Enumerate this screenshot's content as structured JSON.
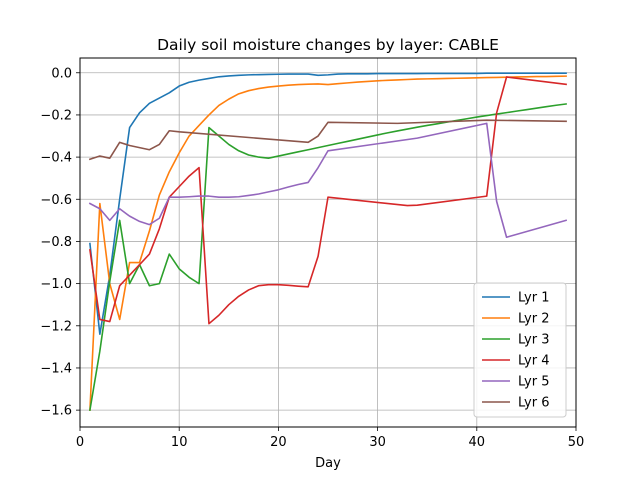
{
  "chart_data": {
    "type": "line",
    "title": "Daily soil moisture changes by layer: CABLE",
    "xlabel": "Day",
    "ylabel": "",
    "xlim": [
      0,
      50
    ],
    "ylim": [
      -1.68,
      0.07
    ],
    "xticks": [
      0,
      10,
      20,
      30,
      40,
      50
    ],
    "yticks": [
      0.0,
      -0.2,
      -0.4,
      -0.6,
      -0.8,
      -1.0,
      -1.2,
      -1.4,
      -1.6
    ],
    "xtick_labels": [
      "0",
      "10",
      "20",
      "30",
      "40",
      "50"
    ],
    "ytick_labels": [
      "0.0",
      "−0.2",
      "−0.4",
      "−0.6",
      "−0.8",
      "−1.0",
      "−1.2",
      "−1.4",
      "−1.6"
    ],
    "grid": true,
    "legend_position": "lower-right",
    "series": [
      {
        "name": "Lyr 1",
        "color": "#1f77b4",
        "x": [
          1,
          2,
          3,
          4,
          5,
          6,
          7,
          8,
          9,
          10,
          11,
          12,
          13,
          14,
          15,
          16,
          17,
          18,
          19,
          20,
          21,
          22,
          23,
          24,
          25,
          26,
          27,
          28,
          29,
          30,
          31,
          32,
          33,
          34,
          35,
          36,
          37,
          38,
          39,
          40,
          41,
          42,
          43,
          44,
          45,
          46,
          47,
          48,
          49
        ],
        "y": [
          -0.81,
          -1.24,
          -0.96,
          -0.6,
          -0.26,
          -0.19,
          -0.145,
          -0.12,
          -0.095,
          -0.063,
          -0.045,
          -0.035,
          -0.027,
          -0.019,
          -0.015,
          -0.012,
          -0.01,
          -0.009,
          -0.008,
          -0.007,
          -0.006,
          -0.006,
          -0.006,
          -0.012,
          -0.01,
          -0.006,
          -0.005,
          -0.005,
          -0.005,
          -0.004,
          -0.004,
          -0.004,
          -0.004,
          -0.004,
          -0.003,
          -0.003,
          -0.003,
          -0.003,
          -0.003,
          -0.003,
          -0.002,
          -0.002,
          -0.002,
          -0.002,
          -0.002,
          -0.002,
          -0.002,
          -0.002,
          -0.002
        ]
      },
      {
        "name": "Lyr 2",
        "color": "#ff7f0e",
        "x": [
          1,
          2,
          3,
          4,
          5,
          6,
          7,
          8,
          9,
          10,
          11,
          12,
          13,
          14,
          15,
          16,
          17,
          18,
          19,
          20,
          21,
          22,
          23,
          24,
          25,
          26,
          27,
          28,
          29,
          30,
          31,
          32,
          33,
          34,
          35,
          36,
          37,
          38,
          39,
          40,
          41,
          42,
          43,
          44,
          45,
          46,
          47,
          48,
          49
        ],
        "y": [
          -1.6,
          -0.62,
          -1.0,
          -1.17,
          -0.9,
          -0.9,
          -0.75,
          -0.58,
          -0.47,
          -0.38,
          -0.3,
          -0.25,
          -0.2,
          -0.155,
          -0.125,
          -0.1,
          -0.085,
          -0.075,
          -0.068,
          -0.063,
          -0.059,
          -0.056,
          -0.054,
          -0.053,
          -0.056,
          -0.052,
          -0.048,
          -0.044,
          -0.041,
          -0.038,
          -0.036,
          -0.034,
          -0.032,
          -0.03,
          -0.029,
          -0.028,
          -0.027,
          -0.026,
          -0.025,
          -0.024,
          -0.023,
          -0.022,
          -0.021,
          -0.02,
          -0.019,
          -0.018,
          -0.018,
          -0.017,
          -0.016
        ]
      },
      {
        "name": "Lyr 3",
        "color": "#2ca02c",
        "x": [
          1,
          2,
          3,
          4,
          5,
          6,
          7,
          8,
          9,
          10,
          11,
          12,
          13,
          14,
          15,
          16,
          17,
          18,
          19,
          20,
          21,
          22,
          23,
          24,
          25,
          26,
          27,
          28,
          29,
          30,
          31,
          32,
          33,
          34,
          35,
          36,
          37,
          38,
          39,
          40,
          41,
          42,
          43,
          44,
          45,
          46,
          47,
          48,
          49
        ],
        "y": [
          -1.6,
          -1.32,
          -0.99,
          -0.7,
          -1.0,
          -0.91,
          -1.01,
          -1.0,
          -0.86,
          -0.93,
          -0.97,
          -1.0,
          -0.26,
          -0.3,
          -0.34,
          -0.37,
          -0.39,
          -0.4,
          -0.405,
          -0.395,
          -0.385,
          -0.375,
          -0.365,
          -0.355,
          -0.345,
          -0.335,
          -0.325,
          -0.315,
          -0.305,
          -0.295,
          -0.285,
          -0.276,
          -0.267,
          -0.258,
          -0.25,
          -0.242,
          -0.234,
          -0.226,
          -0.218,
          -0.21,
          -0.203,
          -0.196,
          -0.189,
          -0.182,
          -0.175,
          -0.168,
          -0.161,
          -0.154,
          -0.148
        ]
      },
      {
        "name": "Lyr 4",
        "color": "#d62728",
        "x": [
          1,
          2,
          3,
          4,
          5,
          6,
          7,
          8,
          9,
          10,
          11,
          12,
          13,
          14,
          15,
          16,
          17,
          18,
          19,
          20,
          21,
          22,
          23,
          24,
          25,
          33,
          34,
          41,
          42,
          43,
          49
        ],
        "y": [
          -0.84,
          -1.17,
          -1.18,
          -1.01,
          -0.96,
          -0.91,
          -0.86,
          -0.74,
          -0.59,
          -0.54,
          -0.49,
          -0.45,
          -1.19,
          -1.15,
          -1.1,
          -1.06,
          -1.03,
          -1.01,
          -1.005,
          -1.005,
          -1.008,
          -1.012,
          -1.015,
          -0.87,
          -0.59,
          -0.63,
          -0.628,
          -0.585,
          -0.19,
          -0.02,
          -0.055
        ]
      },
      {
        "name": "Lyr 5",
        "color": "#9467bd",
        "x": [
          1,
          2,
          3,
          4,
          5,
          6,
          7,
          8,
          9,
          10,
          11,
          12,
          13,
          14,
          15,
          16,
          17,
          18,
          19,
          20,
          21,
          22,
          23,
          24,
          25,
          34,
          41,
          42,
          43,
          49
        ],
        "y": [
          -0.62,
          -0.645,
          -0.7,
          -0.645,
          -0.68,
          -0.705,
          -0.72,
          -0.69,
          -0.59,
          -0.59,
          -0.588,
          -0.585,
          -0.585,
          -0.59,
          -0.59,
          -0.588,
          -0.582,
          -0.575,
          -0.565,
          -0.555,
          -0.542,
          -0.53,
          -0.52,
          -0.45,
          -0.37,
          -0.31,
          -0.24,
          -0.61,
          -0.78,
          -0.7
        ]
      },
      {
        "name": "Lyr 6",
        "color": "#8c564b",
        "x": [
          1,
          2,
          3,
          4,
          5,
          6,
          7,
          8,
          9,
          10,
          23,
          24,
          25,
          32,
          41,
          49
        ],
        "y": [
          -0.41,
          -0.395,
          -0.405,
          -0.33,
          -0.345,
          -0.355,
          -0.365,
          -0.34,
          -0.275,
          -0.28,
          -0.33,
          -0.3,
          -0.235,
          -0.24,
          -0.225,
          -0.23
        ]
      }
    ]
  }
}
